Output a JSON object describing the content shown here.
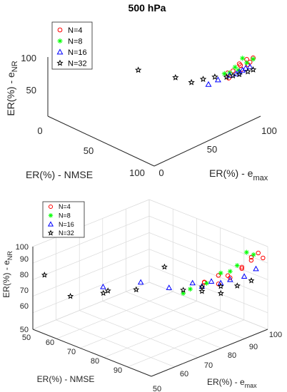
{
  "chart_data": [
    {
      "type": "scatter3d",
      "title": "500 hPa",
      "xlabel": "ER(%) - NMSE",
      "ylabel_main": "ER(%) - e",
      "ylabel_sub": "max",
      "zlabel_main": "ER(%) - e",
      "zlabel_sub": "NR",
      "xlim": [
        0,
        100
      ],
      "ylim": [
        0,
        100
      ],
      "zlim": [
        50,
        100
      ],
      "x_ticks": [
        "0",
        "50",
        "100"
      ],
      "y_ticks": [
        "0",
        "50",
        "100"
      ],
      "z_ticks": [
        "50",
        "100"
      ],
      "grid": false,
      "legend_position": "top-left",
      "series": [
        {
          "name": "N=4",
          "marker": "circle",
          "color": "#ff0000",
          "points": [
            [
              78,
              91,
              81
            ],
            [
              82,
              92,
              84
            ],
            [
              88,
              94,
              87
            ],
            [
              85,
              95,
              90
            ],
            [
              92,
              96,
              92
            ],
            [
              90,
              97,
              95
            ],
            [
              95,
              98,
              98
            ],
            [
              80,
              90,
              78
            ],
            [
              87,
              94,
              90
            ],
            [
              93,
              97,
              94
            ]
          ]
        },
        {
          "name": "N=8",
          "marker": "asterisk",
          "color": "#00ff00",
          "points": [
            [
              76,
              90,
              80
            ],
            [
              84,
              92,
              88
            ],
            [
              88,
              95,
              96
            ],
            [
              91,
              96,
              93
            ],
            [
              86,
              93,
              86
            ],
            [
              80,
              91,
              82
            ],
            [
              95,
              98,
              97
            ]
          ]
        },
        {
          "name": "N=16",
          "marker": "triangle",
          "color": "#0000ff",
          "points": [
            [
              65,
              86,
              68
            ],
            [
              72,
              88,
              74
            ],
            [
              80,
              91,
              80
            ],
            [
              84,
              93,
              82
            ],
            [
              86,
              94,
              84
            ],
            [
              90,
              96,
              88
            ],
            [
              93,
              97,
              90
            ],
            [
              88,
              95,
              86
            ]
          ]
        },
        {
          "name": "N=32",
          "marker": "star",
          "color": "#000000",
          "points": [
            [
              20,
              65,
              70
            ],
            [
              45,
              75,
              70
            ],
            [
              55,
              80,
              68
            ],
            [
              62,
              84,
              72
            ],
            [
              70,
              87,
              76
            ],
            [
              78,
              90,
              78
            ],
            [
              82,
              92,
              80
            ],
            [
              86,
              94,
              82
            ],
            [
              92,
              96,
              86
            ],
            [
              95,
              98,
              88
            ]
          ]
        }
      ]
    },
    {
      "type": "scatter3d",
      "title": "",
      "xlabel": "ER(%) - NMSE",
      "ylabel_main": "ER(%) - e",
      "ylabel_sub": "max",
      "zlabel_main": "ER(%) - e",
      "zlabel_sub": "NR",
      "xlim": [
        50,
        100
      ],
      "ylim": [
        50,
        100
      ],
      "zlim": [
        50,
        100
      ],
      "x_ticks": [
        "50",
        "60",
        "70",
        "80",
        "90"
      ],
      "y_ticks": [
        "50",
        "60",
        "70",
        "80",
        "90",
        "100"
      ],
      "z_ticks": [
        "50",
        "60",
        "70",
        "80",
        "90",
        "100"
      ],
      "grid": true,
      "legend_position": "top-left",
      "series": [
        {
          "name": "N=4",
          "marker": "circle",
          "color": "#ff0000",
          "points": [
            [
              88,
              85,
              80
            ],
            [
              90,
              89,
              78
            ],
            [
              92,
              91,
              83
            ],
            [
              91,
              93,
              80
            ],
            [
              94,
              95,
              87
            ],
            [
              96,
              97,
              93
            ],
            [
              97,
              99,
              95
            ],
            [
              95,
              98,
              90
            ],
            [
              93,
              96,
              85
            ],
            [
              98,
              100,
              92
            ],
            [
              86,
              87,
              78
            ],
            [
              89,
              90,
              82
            ]
          ]
        },
        {
          "name": "N=8",
          "marker": "asterisk",
          "color": "#00ff00",
          "points": [
            [
              85,
              82,
              76
            ],
            [
              88,
              86,
              79
            ],
            [
              90,
              90,
              84
            ],
            [
              93,
              94,
              88
            ],
            [
              95,
              96,
              96
            ],
            [
              92,
              92,
              85
            ],
            [
              96,
              98,
              94
            ],
            [
              84,
              80,
              74
            ]
          ]
        },
        {
          "name": "N=16",
          "marker": "triangle",
          "color": "#0000ff",
          "points": [
            [
              60,
              70,
              70
            ],
            [
              70,
              76,
              75
            ],
            [
              78,
              80,
              74
            ],
            [
              84,
              84,
              78
            ],
            [
              88,
              88,
              79
            ],
            [
              92,
              92,
              80
            ],
            [
              95,
              95,
              82
            ],
            [
              97,
              98,
              86
            ],
            [
              90,
              90,
              78
            ],
            [
              86,
              86,
              76
            ]
          ]
        },
        {
          "name": "N=32",
          "marker": "star",
          "color": "#000000",
          "points": [
            [
              50,
              55,
              80
            ],
            [
              58,
              58,
              70
            ],
            [
              66,
              64,
              73
            ],
            [
              64,
              68,
              71
            ],
            [
              72,
              72,
              74
            ],
            [
              80,
              76,
              90
            ],
            [
              84,
              80,
              76
            ],
            [
              88,
              84,
              78
            ],
            [
              92,
              88,
              74
            ],
            [
              95,
              92,
              78
            ],
            [
              97,
              96,
              80
            ],
            [
              90,
              90,
              76
            ],
            [
              86,
              86,
              73
            ]
          ]
        }
      ]
    }
  ]
}
